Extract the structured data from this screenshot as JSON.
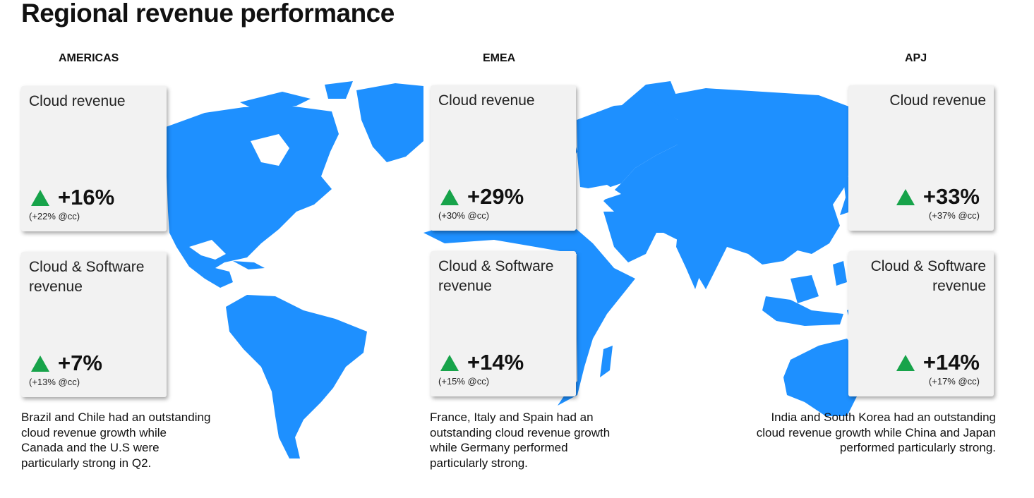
{
  "title": "Regional revenue performance",
  "colors": {
    "land": "#1e90ff",
    "card_bg": "#f2f2f2",
    "up_arrow": "#17a34a"
  },
  "regions": [
    {
      "name": "AMERICAS",
      "cards": [
        {
          "title": "Cloud revenue",
          "icon": "up-triangle-icon",
          "value": "+16%",
          "cc": "(+22% @cc)"
        },
        {
          "title": "Cloud & Software revenue",
          "icon": "up-triangle-icon",
          "value": "+7%",
          "cc": "(+13% @cc)"
        }
      ],
      "note": "Brazil and Chile had an outstanding  cloud revenue growth while Canada and the U.S were particularly strong in Q2."
    },
    {
      "name": "EMEA",
      "cards": [
        {
          "title": "Cloud revenue",
          "icon": "up-triangle-icon",
          "value": "+29%",
          "cc": "(+30% @cc)"
        },
        {
          "title": "Cloud & Software revenue",
          "icon": "up-triangle-icon",
          "value": "+14%",
          "cc": "(+15% @cc)"
        }
      ],
      "note": "France, Italy and Spain had an outstanding cloud revenue growth while Germany performed particularly strong."
    },
    {
      "name": "APJ",
      "cards": [
        {
          "title": "Cloud revenue",
          "icon": "up-triangle-icon",
          "value": "+33%",
          "cc": "(+37% @cc)"
        },
        {
          "title": "Cloud & Software revenue",
          "icon": "up-triangle-icon",
          "value": "+14%",
          "cc": "(+17% @cc)"
        }
      ],
      "note": "India and South Korea had an outstanding cloud revenue growth while China and Japan performed particularly strong."
    }
  ]
}
